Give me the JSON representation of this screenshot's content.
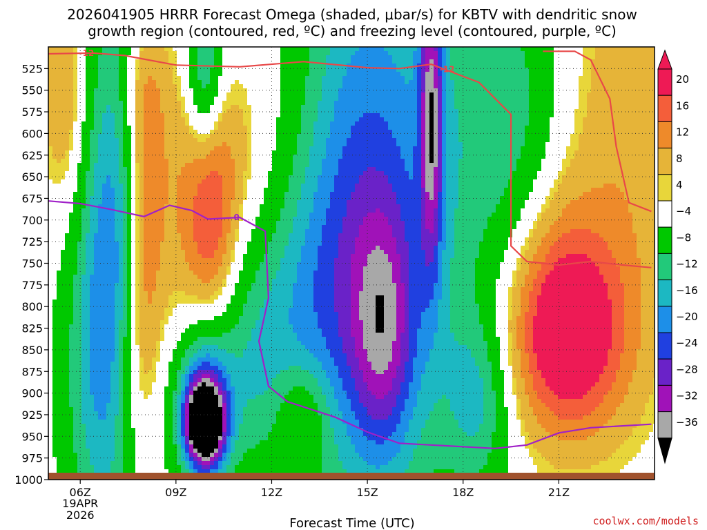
{
  "title": {
    "line1": "2026041905 HRRR Forecast Omega (shaded, μbar/s) for KBTV with dendritic snow",
    "line2": "growth region (contoured, red, ºC) and freezing level (contoured, purple, ºC)"
  },
  "credit": "coolwx.com/models",
  "chart_data": {
    "type": "heatmap",
    "xlabel": "Forecast Time (UTC)",
    "x_unit": "forecast hour",
    "xlim": [
      5,
      24
    ],
    "ylim": [
      1000,
      500
    ],
    "x_ticks": [
      {
        "hour": 6,
        "label": "06Z",
        "sub1": "19APR",
        "sub2": "2026"
      },
      {
        "hour": 9,
        "label": "09Z"
      },
      {
        "hour": 12,
        "label": "12Z"
      },
      {
        "hour": 15,
        "label": "15Z"
      },
      {
        "hour": 18,
        "label": "18Z"
      },
      {
        "hour": 21,
        "label": "21Z"
      }
    ],
    "y_ticks": [
      525,
      550,
      575,
      600,
      625,
      650,
      675,
      700,
      725,
      750,
      775,
      800,
      825,
      850,
      875,
      900,
      925,
      950,
      975,
      1000
    ],
    "colorbar": {
      "top_label": "20",
      "levels": [
        {
          "label": "20",
          "color": "#ee1a55"
        },
        {
          "label": "16",
          "color": "#f45e3a"
        },
        {
          "label": "12",
          "color": "#ee8a2a"
        },
        {
          "label": "8",
          "color": "#e6b438"
        },
        {
          "label": "4",
          "color": "#e8d63a"
        },
        {
          "label": "−4",
          "color": "#ffffff"
        },
        {
          "label": "−8",
          "color": "#00c800"
        },
        {
          "label": "−12",
          "color": "#22c97a"
        },
        {
          "label": "−16",
          "color": "#1cb8c2"
        },
        {
          "label": "−20",
          "color": "#1d8fe8"
        },
        {
          "label": "−24",
          "color": "#2040e0"
        },
        {
          "label": "−28",
          "color": "#6a22c8"
        },
        {
          "label": "−32",
          "color": "#a012b8"
        },
        {
          "label": "−36",
          "color": "#a8a8a8"
        }
      ],
      "bottom_color": "#000000"
    },
    "contours": [
      {
        "name": "-12",
        "color": "#e84848",
        "points": [
          [
            5.0,
            508
          ],
          [
            6.4,
            507
          ],
          [
            7.4,
            510
          ],
          [
            9.0,
            521
          ],
          [
            11.0,
            523
          ],
          [
            13.0,
            517
          ],
          [
            15.0,
            524
          ],
          [
            16.0,
            525
          ],
          [
            17.0,
            520
          ],
          [
            18.5,
            541
          ],
          [
            19.5,
            578
          ],
          [
            19.5,
            730
          ],
          [
            20.0,
            748
          ],
          [
            21.0,
            752
          ],
          [
            22.0,
            748
          ],
          [
            23.0,
            752
          ],
          [
            23.9,
            755
          ]
        ]
      },
      {
        "name": "-12",
        "color": "#e84848",
        "points": [
          [
            20.5,
            505
          ],
          [
            21.5,
            505
          ],
          [
            22.0,
            515
          ],
          [
            22.6,
            560
          ],
          [
            22.8,
            615
          ],
          [
            23.2,
            680
          ],
          [
            23.9,
            690
          ]
        ]
      },
      {
        "name": "0",
        "color": "#a020c8",
        "points": [
          [
            5.0,
            678
          ],
          [
            6.0,
            681
          ],
          [
            7.0,
            688
          ],
          [
            8.0,
            696
          ],
          [
            8.8,
            683
          ],
          [
            9.5,
            689
          ],
          [
            10.0,
            699
          ],
          [
            11.0,
            697
          ],
          [
            11.8,
            713
          ],
          [
            11.9,
            790
          ],
          [
            11.6,
            840
          ],
          [
            11.9,
            892
          ],
          [
            12.5,
            910
          ],
          [
            14.0,
            928
          ],
          [
            15.0,
            945
          ],
          [
            16.0,
            958
          ],
          [
            18.0,
            962
          ],
          [
            19.0,
            964
          ],
          [
            20.0,
            960
          ],
          [
            21.0,
            946
          ],
          [
            22.0,
            940
          ],
          [
            23.9,
            936
          ]
        ]
      }
    ],
    "contour_labels": [
      {
        "text": "-12",
        "hour": 6.2,
        "p": 507,
        "color": "#e84848"
      },
      {
        "text": "-12",
        "hour": 17.5,
        "p": 526,
        "color": "#e84848"
      },
      {
        "text": "0",
        "hour": 10.9,
        "p": 697,
        "color": "#a020c8"
      }
    ],
    "omega_blobs": [
      {
        "hour": 8.8,
        "p": 720,
        "sigma_h": 1.1,
        "sigma_p": 160,
        "value": 6
      },
      {
        "hour": 8.0,
        "p": 740,
        "sigma_h": 0.4,
        "sigma_p": 150,
        "value": 9
      },
      {
        "hour": 10.1,
        "p": 710,
        "sigma_h": 0.55,
        "sigma_p": 80,
        "value": 12
      },
      {
        "hour": 10.6,
        "p": 620,
        "sigma_h": 1.0,
        "sigma_p": 70,
        "value": 5
      },
      {
        "hour": 5.5,
        "p": 560,
        "sigma_h": 0.5,
        "sigma_p": 90,
        "value": 8
      },
      {
        "hour": 7.5,
        "p": 880,
        "sigma_h": 0.5,
        "sigma_p": 80,
        "value": 5
      },
      {
        "hour": 13.0,
        "p": 920,
        "sigma_h": 0.6,
        "sigma_p": 40,
        "value": 8
      },
      {
        "hour": 21.3,
        "p": 835,
        "sigma_h": 1.3,
        "sigma_p": 80,
        "value": 20
      },
      {
        "hour": 21.0,
        "p": 760,
        "sigma_h": 1.0,
        "sigma_p": 110,
        "value": 6
      },
      {
        "hour": 23.2,
        "p": 600,
        "sigma_h": 1.3,
        "sigma_p": 200,
        "value": 7
      },
      {
        "hour": 8.0,
        "p": 560,
        "sigma_h": 0.5,
        "sigma_p": 60,
        "value": 5
      },
      {
        "hour": 9.9,
        "p": 935,
        "sigma_h": 0.4,
        "sigma_p": 30,
        "value": -38
      },
      {
        "hour": 9.9,
        "p": 920,
        "sigma_h": 0.55,
        "sigma_p": 60,
        "value": -22
      },
      {
        "hour": 7.0,
        "p": 740,
        "sigma_h": 0.65,
        "sigma_p": 220,
        "value": -18
      },
      {
        "hour": 6.2,
        "p": 880,
        "sigma_h": 0.7,
        "sigma_p": 140,
        "value": -8
      },
      {
        "hour": 9.9,
        "p": 530,
        "sigma_h": 0.4,
        "sigma_p": 70,
        "value": -14
      },
      {
        "hour": 14.4,
        "p": 700,
        "sigma_h": 1.2,
        "sigma_p": 250,
        "value": -14
      },
      {
        "hour": 13.0,
        "p": 800,
        "sigma_h": 1.2,
        "sigma_p": 110,
        "value": -9
      },
      {
        "hour": 16.5,
        "p": 680,
        "sigma_h": 1.6,
        "sigma_p": 260,
        "value": -14
      },
      {
        "hour": 17.0,
        "p": 580,
        "sigma_h": 0.25,
        "sigma_p": 120,
        "value": -23
      },
      {
        "hour": 15.5,
        "p": 830,
        "sigma_h": 0.7,
        "sigma_p": 100,
        "value": -17
      },
      {
        "hour": 18.5,
        "p": 910,
        "sigma_h": 0.7,
        "sigma_p": 70,
        "value": -10
      },
      {
        "hour": 19.6,
        "p": 580,
        "sigma_h": 1.1,
        "sigma_p": 120,
        "value": -9
      },
      {
        "hour": 11.5,
        "p": 870,
        "sigma_h": 0.9,
        "sigma_p": 90,
        "value": -7
      },
      {
        "hour": 9.6,
        "p": 900,
        "sigma_h": 1.4,
        "sigma_p": 90,
        "value": -6
      }
    ]
  }
}
